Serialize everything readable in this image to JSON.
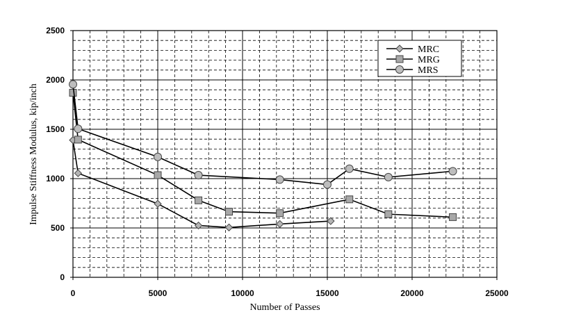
{
  "chart_data": {
    "type": "line",
    "title": "",
    "xlabel": "Number of Passes",
    "ylabel": "Impulse Stiffness Modulus, kip/inch",
    "xlim": [
      0,
      25000
    ],
    "ylim": [
      0,
      2500
    ],
    "x_ticks": [
      "0",
      "5000",
      "10000",
      "15000",
      "20000",
      "25000"
    ],
    "y_ticks": [
      "0",
      "500",
      "1000",
      "1500",
      "2000",
      "2500"
    ],
    "grid": "major solid, minor dashed",
    "legend_position": "top-right",
    "series": [
      {
        "name": "MRC",
        "marker": "diamond",
        "points": [
          [
            0,
            1390
          ],
          [
            300,
            1055
          ],
          [
            5000,
            745
          ],
          [
            7400,
            525
          ],
          [
            9200,
            505
          ],
          [
            12200,
            540
          ],
          [
            15200,
            570
          ]
        ]
      },
      {
        "name": "MRG",
        "marker": "square",
        "points": [
          [
            0,
            1870
          ],
          [
            300,
            1395
          ],
          [
            5000,
            1035
          ],
          [
            7400,
            780
          ],
          [
            9200,
            665
          ],
          [
            12200,
            650
          ],
          [
            16300,
            790
          ],
          [
            18600,
            640
          ],
          [
            22400,
            610
          ]
        ]
      },
      {
        "name": "MRS",
        "marker": "circle",
        "points": [
          [
            0,
            1955
          ],
          [
            300,
            1505
          ],
          [
            5000,
            1220
          ],
          [
            7400,
            1035
          ],
          [
            12200,
            990
          ],
          [
            15000,
            940
          ],
          [
            16300,
            1100
          ],
          [
            18600,
            1015
          ],
          [
            22400,
            1075
          ]
        ]
      }
    ]
  }
}
